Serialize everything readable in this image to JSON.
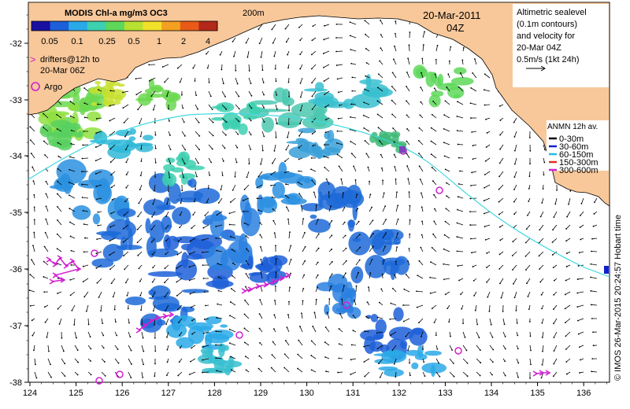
{
  "colorbar": {
    "title": "MODIS Chl-a mg/m3 OC3",
    "tick_labels": [
      "0.05",
      "0.1",
      "0.25",
      "0.5",
      "1",
      "2",
      "4"
    ],
    "colors": [
      "#1a10a0",
      "#1d5fd8",
      "#2aa9e8",
      "#3dd0b0",
      "#5ed85a",
      "#b8e030",
      "#f2e12a",
      "#f4a020",
      "#e85a18",
      "#b4281a"
    ]
  },
  "date": "20-Mar-2011",
  "hour": "04Z",
  "isobath_label": "200m",
  "altimetry_legend": {
    "lines": [
      "Altimetric sealevel",
      "(0.1m contours)",
      "and velocity for",
      "20-Mar 04Z",
      "0.5m/s (1kt 24h)"
    ]
  },
  "drifters_legend": {
    "symbol": ">",
    "lines": [
      "drifters@12h to",
      "20-Mar 06Z"
    ],
    "color": "#d020d0"
  },
  "argo_legend": {
    "label": "Argo",
    "color": "#d020d0"
  },
  "anmn_legend": {
    "title": "ANMN 12h av.",
    "items": [
      {
        "label": "0-30m",
        "color": "#000000"
      },
      {
        "label": "30-60m",
        "color": "#1020d0"
      },
      {
        "label": "60-150m",
        "color": "#20c0e0"
      },
      {
        "label": "150-300m",
        "color": "#e03020"
      },
      {
        "label": "300-600m",
        "color": "#d020d0"
      }
    ]
  },
  "credit": "© IMOS 26-Mar-2015 20:24:57 Hobart time",
  "axes": {
    "x_ticks": [
      "124",
      "125",
      "126",
      "127",
      "128",
      "129",
      "130",
      "131",
      "132",
      "133",
      "134",
      "135",
      "136"
    ],
    "y_ticks": [
      "-32",
      "-33",
      "-34",
      "-35",
      "-36",
      "-37",
      "-38"
    ]
  },
  "colors": {
    "land": "#f8c89a",
    "shelf_line": "#40d8e0",
    "argo": "#d020d0",
    "vector": "#000000"
  }
}
